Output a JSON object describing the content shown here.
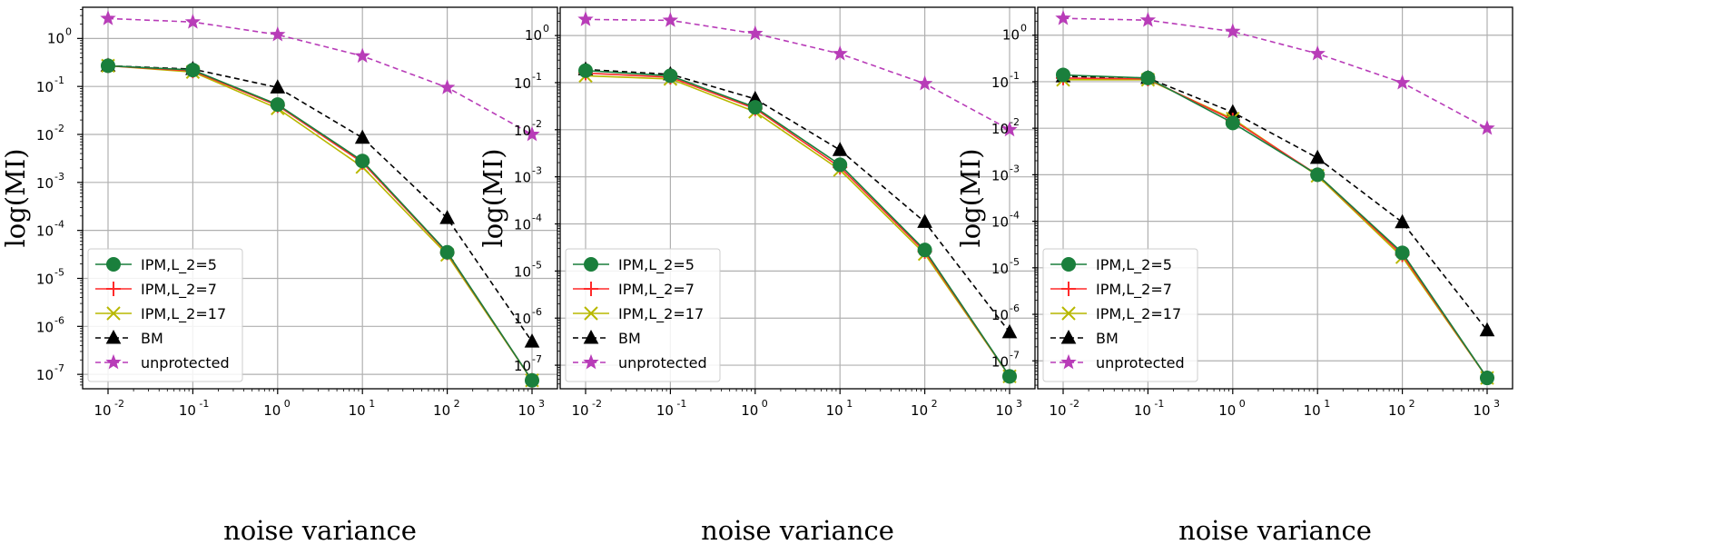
{
  "chart_data": [
    {
      "type": "line",
      "yscale": "log",
      "xscale": "log",
      "xlabel": "noise variance",
      "ylabel": "log(MI)",
      "grid": true,
      "legend_position": "lower-left",
      "x": [
        0.01,
        0.1,
        1,
        10,
        100,
        1000
      ],
      "x_ticks": [
        {
          "base": "10",
          "exp": "-2"
        },
        {
          "base": "10",
          "exp": "-1"
        },
        {
          "base": "10",
          "exp": "0"
        },
        {
          "base": "10",
          "exp": "1"
        },
        {
          "base": "10",
          "exp": "2"
        },
        {
          "base": "10",
          "exp": "3"
        }
      ],
      "y_ticks": [
        {
          "base": "10",
          "exp": "-7"
        },
        {
          "base": "10",
          "exp": "-6"
        },
        {
          "base": "10",
          "exp": "-5"
        },
        {
          "base": "10",
          "exp": "-4"
        },
        {
          "base": "10",
          "exp": "-3"
        },
        {
          "base": "10",
          "exp": "-2"
        },
        {
          "base": "10",
          "exp": "-1"
        },
        {
          "base": "10",
          "exp": "0"
        }
      ],
      "y_top_tick": "1.0",
      "ylim_log10": [
        -7.3,
        0.65
      ],
      "series": [
        {
          "name": "IPM,L_2=5",
          "color": "#1a7f3c",
          "marker": "circle",
          "linestyle": "solid",
          "values": [
            0.27,
            0.22,
            0.042,
            0.0028,
            3.5e-05,
            7.5e-08
          ]
        },
        {
          "name": "IPM,L_2=7",
          "color": "#ff2a2a",
          "marker": "plus",
          "linestyle": "solid",
          "values": [
            0.27,
            0.21,
            0.04,
            0.0026,
            3.4e-05,
            7.5e-08
          ]
        },
        {
          "name": "IPM,L_2=17",
          "color": "#b8b800",
          "marker": "x",
          "linestyle": "solid",
          "values": [
            0.27,
            0.2,
            0.035,
            0.0021,
            3.1e-05,
            7.5e-08
          ]
        },
        {
          "name": "BM",
          "color": "#000000",
          "marker": "triangle",
          "linestyle": "dashed",
          "values": [
            0.27,
            0.23,
            0.095,
            0.0085,
            0.00018,
            4.8e-07
          ]
        },
        {
          "name": "unprotected",
          "color": "#b83cb8",
          "marker": "star",
          "linestyle": "dashed",
          "values": [
            2.6,
            2.2,
            1.2,
            0.43,
            0.095,
            0.01
          ]
        }
      ]
    },
    {
      "type": "line",
      "yscale": "log",
      "xscale": "log",
      "xlabel": "noise variance",
      "ylabel": "log(MI)",
      "grid": true,
      "legend_position": "lower-left",
      "x": [
        0.01,
        0.1,
        1,
        10,
        100,
        1000
      ],
      "x_ticks": [
        {
          "base": "10",
          "exp": "-2"
        },
        {
          "base": "10",
          "exp": "-1"
        },
        {
          "base": "10",
          "exp": "0"
        },
        {
          "base": "10",
          "exp": "1"
        },
        {
          "base": "10",
          "exp": "2"
        },
        {
          "base": "10",
          "exp": "3"
        }
      ],
      "y_ticks": [
        {
          "base": "10",
          "exp": "-7"
        },
        {
          "base": "10",
          "exp": "-6"
        },
        {
          "base": "10",
          "exp": "-5"
        },
        {
          "base": "10",
          "exp": "-4"
        },
        {
          "base": "10",
          "exp": "-3"
        },
        {
          "base": "10",
          "exp": "-2"
        },
        {
          "base": "10",
          "exp": "-1"
        },
        {
          "base": "10",
          "exp": "0"
        }
      ],
      "y_top_tick": "1.0",
      "ylim_log10": [
        -7.5,
        0.6
      ],
      "series": [
        {
          "name": "IPM,L_2=5",
          "color": "#1a7f3c",
          "marker": "circle",
          "linestyle": "solid",
          "values": [
            0.18,
            0.14,
            0.03,
            0.0018,
            2.8e-05,
            5.8e-08
          ]
        },
        {
          "name": "IPM,L_2=7",
          "color": "#ff2a2a",
          "marker": "plus",
          "linestyle": "solid",
          "values": [
            0.16,
            0.13,
            0.028,
            0.0016,
            2.6e-05,
            5.8e-08
          ]
        },
        {
          "name": "IPM,L_2=17",
          "color": "#b8b800",
          "marker": "x",
          "linestyle": "solid",
          "values": [
            0.14,
            0.12,
            0.024,
            0.0014,
            2.3e-05,
            5.8e-08
          ]
        },
        {
          "name": "BM",
          "color": "#000000",
          "marker": "triangle",
          "linestyle": "dashed",
          "values": [
            0.19,
            0.15,
            0.045,
            0.0037,
            0.00011,
            5e-07
          ]
        },
        {
          "name": "unprotected",
          "color": "#b83cb8",
          "marker": "star",
          "linestyle": "dashed",
          "values": [
            2.2,
            2.1,
            1.1,
            0.41,
            0.095,
            0.01
          ]
        }
      ]
    },
    {
      "type": "line",
      "yscale": "log",
      "xscale": "log",
      "xlabel": "noise variance",
      "ylabel": "log(MI)",
      "grid": true,
      "legend_position": "lower-left",
      "x": [
        0.01,
        0.1,
        1,
        10,
        100,
        1000
      ],
      "x_ticks": [
        {
          "base": "10",
          "exp": "-2"
        },
        {
          "base": "10",
          "exp": "-1"
        },
        {
          "base": "10",
          "exp": "0"
        },
        {
          "base": "10",
          "exp": "1"
        },
        {
          "base": "10",
          "exp": "2"
        },
        {
          "base": "10",
          "exp": "3"
        }
      ],
      "y_ticks": [
        {
          "base": "10",
          "exp": "-7"
        },
        {
          "base": "10",
          "exp": "-6"
        },
        {
          "base": "10",
          "exp": "-5"
        },
        {
          "base": "10",
          "exp": "-4"
        },
        {
          "base": "10",
          "exp": "-3"
        },
        {
          "base": "10",
          "exp": "-2"
        },
        {
          "base": "10",
          "exp": "-1"
        },
        {
          "base": "10",
          "exp": "0"
        }
      ],
      "y_top_tick": "1.0",
      "ylim_log10": [
        -7.6,
        0.6
      ],
      "series": [
        {
          "name": "IPM,L_2=5",
          "color": "#1a7f3c",
          "marker": "circle",
          "linestyle": "solid",
          "values": [
            0.14,
            0.12,
            0.013,
            0.001,
            2.1e-05,
            4.3e-08
          ]
        },
        {
          "name": "IPM,L_2=7",
          "color": "#ff2a2a",
          "marker": "plus",
          "linestyle": "solid",
          "values": [
            0.12,
            0.115,
            0.015,
            0.001,
            1.9e-05,
            4.3e-08
          ]
        },
        {
          "name": "IPM,L_2=17",
          "color": "#b8b800",
          "marker": "x",
          "linestyle": "solid",
          "values": [
            0.11,
            0.11,
            0.016,
            0.00095,
            1.7e-05,
            4.3e-08
          ]
        },
        {
          "name": "BM",
          "color": "#000000",
          "marker": "triangle",
          "linestyle": "dashed",
          "values": [
            0.13,
            0.12,
            0.022,
            0.0023,
            9.5e-05,
            4.5e-07
          ]
        },
        {
          "name": "unprotected",
          "color": "#b83cb8",
          "marker": "star",
          "linestyle": "dashed",
          "values": [
            2.3,
            2.1,
            1.2,
            0.4,
            0.095,
            0.01
          ]
        }
      ]
    }
  ]
}
